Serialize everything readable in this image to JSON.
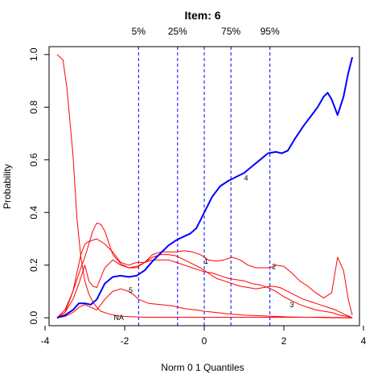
{
  "chart_data": {
    "type": "line",
    "title": "Item:  6",
    "xlabel": "Norm 0 1 Quantiles",
    "ylabel": "Probability",
    "xlim": [
      -3.9,
      3.9
    ],
    "ylim": [
      -0.03,
      1.03
    ],
    "x_ticks": [
      -4,
      -2,
      0,
      2,
      4
    ],
    "x_tick_labels": [
      "-4",
      "-2",
      "0",
      "2",
      "4"
    ],
    "y_ticks": [
      0.0,
      0.2,
      0.4,
      0.6,
      0.8,
      1.0
    ],
    "y_tick_labels": [
      "0.0",
      "0.2",
      "0.4",
      "0.6",
      "0.8",
      "1.0"
    ],
    "quantile_lines": [
      {
        "label": "5%",
        "x": -1.65
      },
      {
        "label": "25%",
        "x": -0.67
      },
      {
        "label": "",
        "x": 0.0
      },
      {
        "label": "75%",
        "x": 0.67
      },
      {
        "label": "95%",
        "x": 1.65
      }
    ],
    "colors": {
      "key": "#0000ff",
      "other": "#ff0000",
      "quantile": "#0000ff"
    },
    "series": [
      {
        "name": "4",
        "key": true,
        "label_at": [
          1.05,
          0.53
        ],
        "x": [
          -3.7,
          -3.5,
          -3.3,
          -3.15,
          -3.0,
          -2.85,
          -2.7,
          -2.5,
          -2.3,
          -2.1,
          -1.9,
          -1.7,
          -1.5,
          -1.3,
          -1.1,
          -0.9,
          -0.7,
          -0.5,
          -0.35,
          -0.2,
          -0.1,
          0.0,
          0.2,
          0.4,
          0.6,
          0.8,
          1.0,
          1.2,
          1.4,
          1.6,
          1.8,
          1.95,
          2.1,
          2.3,
          2.5,
          2.7,
          2.85,
          3.0,
          3.1,
          3.2,
          3.35,
          3.5,
          3.62,
          3.72
        ],
        "y": [
          0.0,
          0.01,
          0.03,
          0.055,
          0.055,
          0.05,
          0.07,
          0.13,
          0.155,
          0.16,
          0.155,
          0.16,
          0.18,
          0.215,
          0.245,
          0.275,
          0.295,
          0.31,
          0.32,
          0.34,
          0.37,
          0.4,
          0.46,
          0.5,
          0.52,
          0.535,
          0.55,
          0.575,
          0.6,
          0.625,
          0.63,
          0.625,
          0.635,
          0.685,
          0.73,
          0.77,
          0.8,
          0.84,
          0.855,
          0.83,
          0.77,
          0.84,
          0.93,
          0.99
        ]
      },
      {
        "name": "NA",
        "key": false,
        "label_at": [
          -2.15,
          0.0
        ],
        "x": [
          -3.7,
          -3.55,
          -3.45,
          -3.3,
          -3.2,
          -3.1,
          -3.0,
          -2.9,
          -2.8,
          -2.7,
          -2.6,
          -2.4,
          -2.2,
          -2.0,
          -1.5,
          -1.0,
          0.0,
          1.0,
          2.0,
          3.0,
          3.72
        ],
        "y": [
          1.0,
          0.98,
          0.87,
          0.62,
          0.38,
          0.23,
          0.14,
          0.09,
          0.06,
          0.04,
          0.025,
          0.015,
          0.008,
          0.005,
          0.002,
          0.002,
          0.002,
          0.002,
          0.002,
          0.002,
          0.0
        ]
      },
      {
        "name": "5",
        "key": false,
        "label_at": [
          -1.85,
          0.105
        ],
        "x": [
          -3.7,
          -3.5,
          -3.3,
          -3.15,
          -3.0,
          -2.85,
          -2.7,
          -2.5,
          -2.3,
          -2.1,
          -1.9,
          -1.75,
          -1.65,
          -1.4,
          -1.1,
          -0.8,
          -0.5,
          -0.2,
          0.0,
          0.3,
          0.6,
          1.0,
          1.4,
          1.8,
          2.2,
          2.6,
          3.0,
          3.4,
          3.72
        ],
        "y": [
          0.0,
          0.005,
          0.02,
          0.04,
          0.05,
          0.04,
          0.03,
          0.07,
          0.1,
          0.11,
          0.1,
          0.085,
          0.07,
          0.055,
          0.05,
          0.045,
          0.035,
          0.03,
          0.025,
          0.02,
          0.015,
          0.01,
          0.008,
          0.005,
          0.003,
          0.002,
          0.001,
          0.0,
          0.0
        ]
      },
      {
        "name": "1",
        "key": false,
        "label_at": [
          0.05,
          0.215
        ],
        "x": [
          -3.7,
          -3.5,
          -3.3,
          -3.2,
          -3.1,
          -3.0,
          -2.9,
          -2.8,
          -2.7,
          -2.5,
          -2.3,
          -2.1,
          -1.9,
          -1.7,
          -1.5,
          -1.3,
          -1.1,
          -0.9,
          -0.7,
          -0.5,
          -0.3,
          -0.1,
          0.0,
          0.2,
          0.4,
          0.6,
          0.8,
          1.0,
          1.2,
          1.4,
          1.6,
          1.8,
          2.0,
          2.2,
          2.4,
          2.6,
          2.8,
          3.0,
          3.2,
          3.4,
          3.6,
          3.72
        ],
        "y": [
          0.0,
          0.02,
          0.1,
          0.17,
          0.24,
          0.28,
          0.29,
          0.295,
          0.3,
          0.28,
          0.25,
          0.21,
          0.2,
          0.21,
          0.21,
          0.22,
          0.22,
          0.22,
          0.21,
          0.2,
          0.19,
          0.18,
          0.175,
          0.17,
          0.16,
          0.15,
          0.145,
          0.14,
          0.13,
          0.125,
          0.115,
          0.1,
          0.08,
          0.065,
          0.05,
          0.04,
          0.03,
          0.025,
          0.02,
          0.01,
          0.005,
          0.0
        ]
      },
      {
        "name": "2",
        "key": false,
        "label_at": [
          1.75,
          0.195
        ],
        "x": [
          -3.7,
          -3.5,
          -3.3,
          -3.1,
          -3.0,
          -2.9,
          -2.8,
          -2.7,
          -2.6,
          -2.5,
          -2.3,
          -2.1,
          -1.9,
          -1.7,
          -1.5,
          -1.3,
          -1.1,
          -0.9,
          -0.7,
          -0.5,
          -0.3,
          -0.1,
          0.1,
          0.3,
          0.5,
          0.7,
          0.9,
          1.1,
          1.3,
          1.5,
          1.65,
          1.8,
          2.0,
          2.2,
          2.4,
          2.6,
          2.8,
          3.0,
          3.2,
          3.35,
          3.5,
          3.62,
          3.72
        ],
        "y": [
          0.0,
          0.03,
          0.1,
          0.19,
          0.23,
          0.28,
          0.33,
          0.36,
          0.355,
          0.33,
          0.24,
          0.205,
          0.19,
          0.195,
          0.21,
          0.24,
          0.25,
          0.25,
          0.25,
          0.255,
          0.25,
          0.24,
          0.22,
          0.215,
          0.22,
          0.23,
          0.22,
          0.2,
          0.19,
          0.19,
          0.19,
          0.2,
          0.195,
          0.17,
          0.14,
          0.12,
          0.095,
          0.075,
          0.095,
          0.23,
          0.18,
          0.07,
          0.01
        ]
      },
      {
        "name": "3",
        "key": false,
        "label_at": [
          2.2,
          0.05
        ],
        "x": [
          -3.7,
          -3.5,
          -3.3,
          -3.15,
          -3.0,
          -2.9,
          -2.8,
          -2.7,
          -2.5,
          -2.3,
          -2.1,
          -1.9,
          -1.7,
          -1.5,
          -1.3,
          -1.1,
          -0.9,
          -0.7,
          -0.5,
          -0.3,
          -0.1,
          0.1,
          0.3,
          0.5,
          0.7,
          0.9,
          1.1,
          1.3,
          1.5,
          1.7,
          1.9,
          2.1,
          2.3,
          2.5,
          2.7,
          2.9,
          3.1,
          3.3,
          3.5,
          3.72
        ],
        "y": [
          0.0,
          0.02,
          0.07,
          0.13,
          0.2,
          0.14,
          0.12,
          0.115,
          0.19,
          0.22,
          0.2,
          0.19,
          0.19,
          0.21,
          0.23,
          0.24,
          0.24,
          0.235,
          0.22,
          0.205,
          0.19,
          0.17,
          0.15,
          0.14,
          0.13,
          0.12,
          0.115,
          0.11,
          0.115,
          0.12,
          0.115,
          0.1,
          0.085,
          0.07,
          0.06,
          0.05,
          0.04,
          0.03,
          0.015,
          0.0
        ]
      }
    ]
  }
}
